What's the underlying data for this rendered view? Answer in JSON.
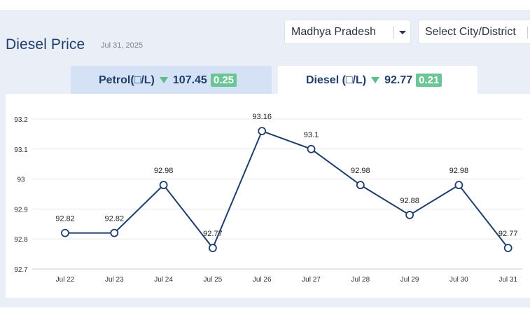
{
  "header": {
    "title": "Diesel Price",
    "date": "Jul 31, 2025"
  },
  "filters": {
    "state": "Madhya Pradesh",
    "city_placeholder": "Select City/District"
  },
  "tabs": [
    {
      "label": "Petrol(□/L)",
      "price": "107.45",
      "change": "0.25",
      "trend": "down",
      "active": false
    },
    {
      "label": "Diesel (□/L)",
      "price": "92.77",
      "change": "0.21",
      "trend": "down",
      "active": true
    }
  ],
  "colors": {
    "brand": "#1f3e6b",
    "line": "#1f3e6b",
    "trend_down": "#5cbf8a",
    "badge": "#6cc596"
  },
  "chart_data": {
    "type": "line",
    "categories": [
      "Jul 22",
      "Jul 23",
      "Jul 24",
      "Jul 25",
      "Jul 26",
      "Jul 27",
      "Jul 28",
      "Jul 29",
      "Jul 30",
      "Jul 31"
    ],
    "values": [
      92.82,
      92.82,
      92.98,
      92.77,
      93.16,
      93.1,
      92.98,
      92.88,
      92.98,
      92.77
    ],
    "data_labels": [
      "92.82",
      "92.82",
      "92.98",
      "92.77",
      "93.16",
      "93.1",
      "92.98",
      "92.88",
      "92.98",
      "92.77"
    ],
    "y_ticks": [
      "93.2",
      "93.1",
      "93",
      "92.9",
      "92.8",
      "92.7"
    ],
    "ylim": [
      92.7,
      93.2
    ],
    "grid": true,
    "title": "",
    "xlabel": "",
    "ylabel": ""
  }
}
